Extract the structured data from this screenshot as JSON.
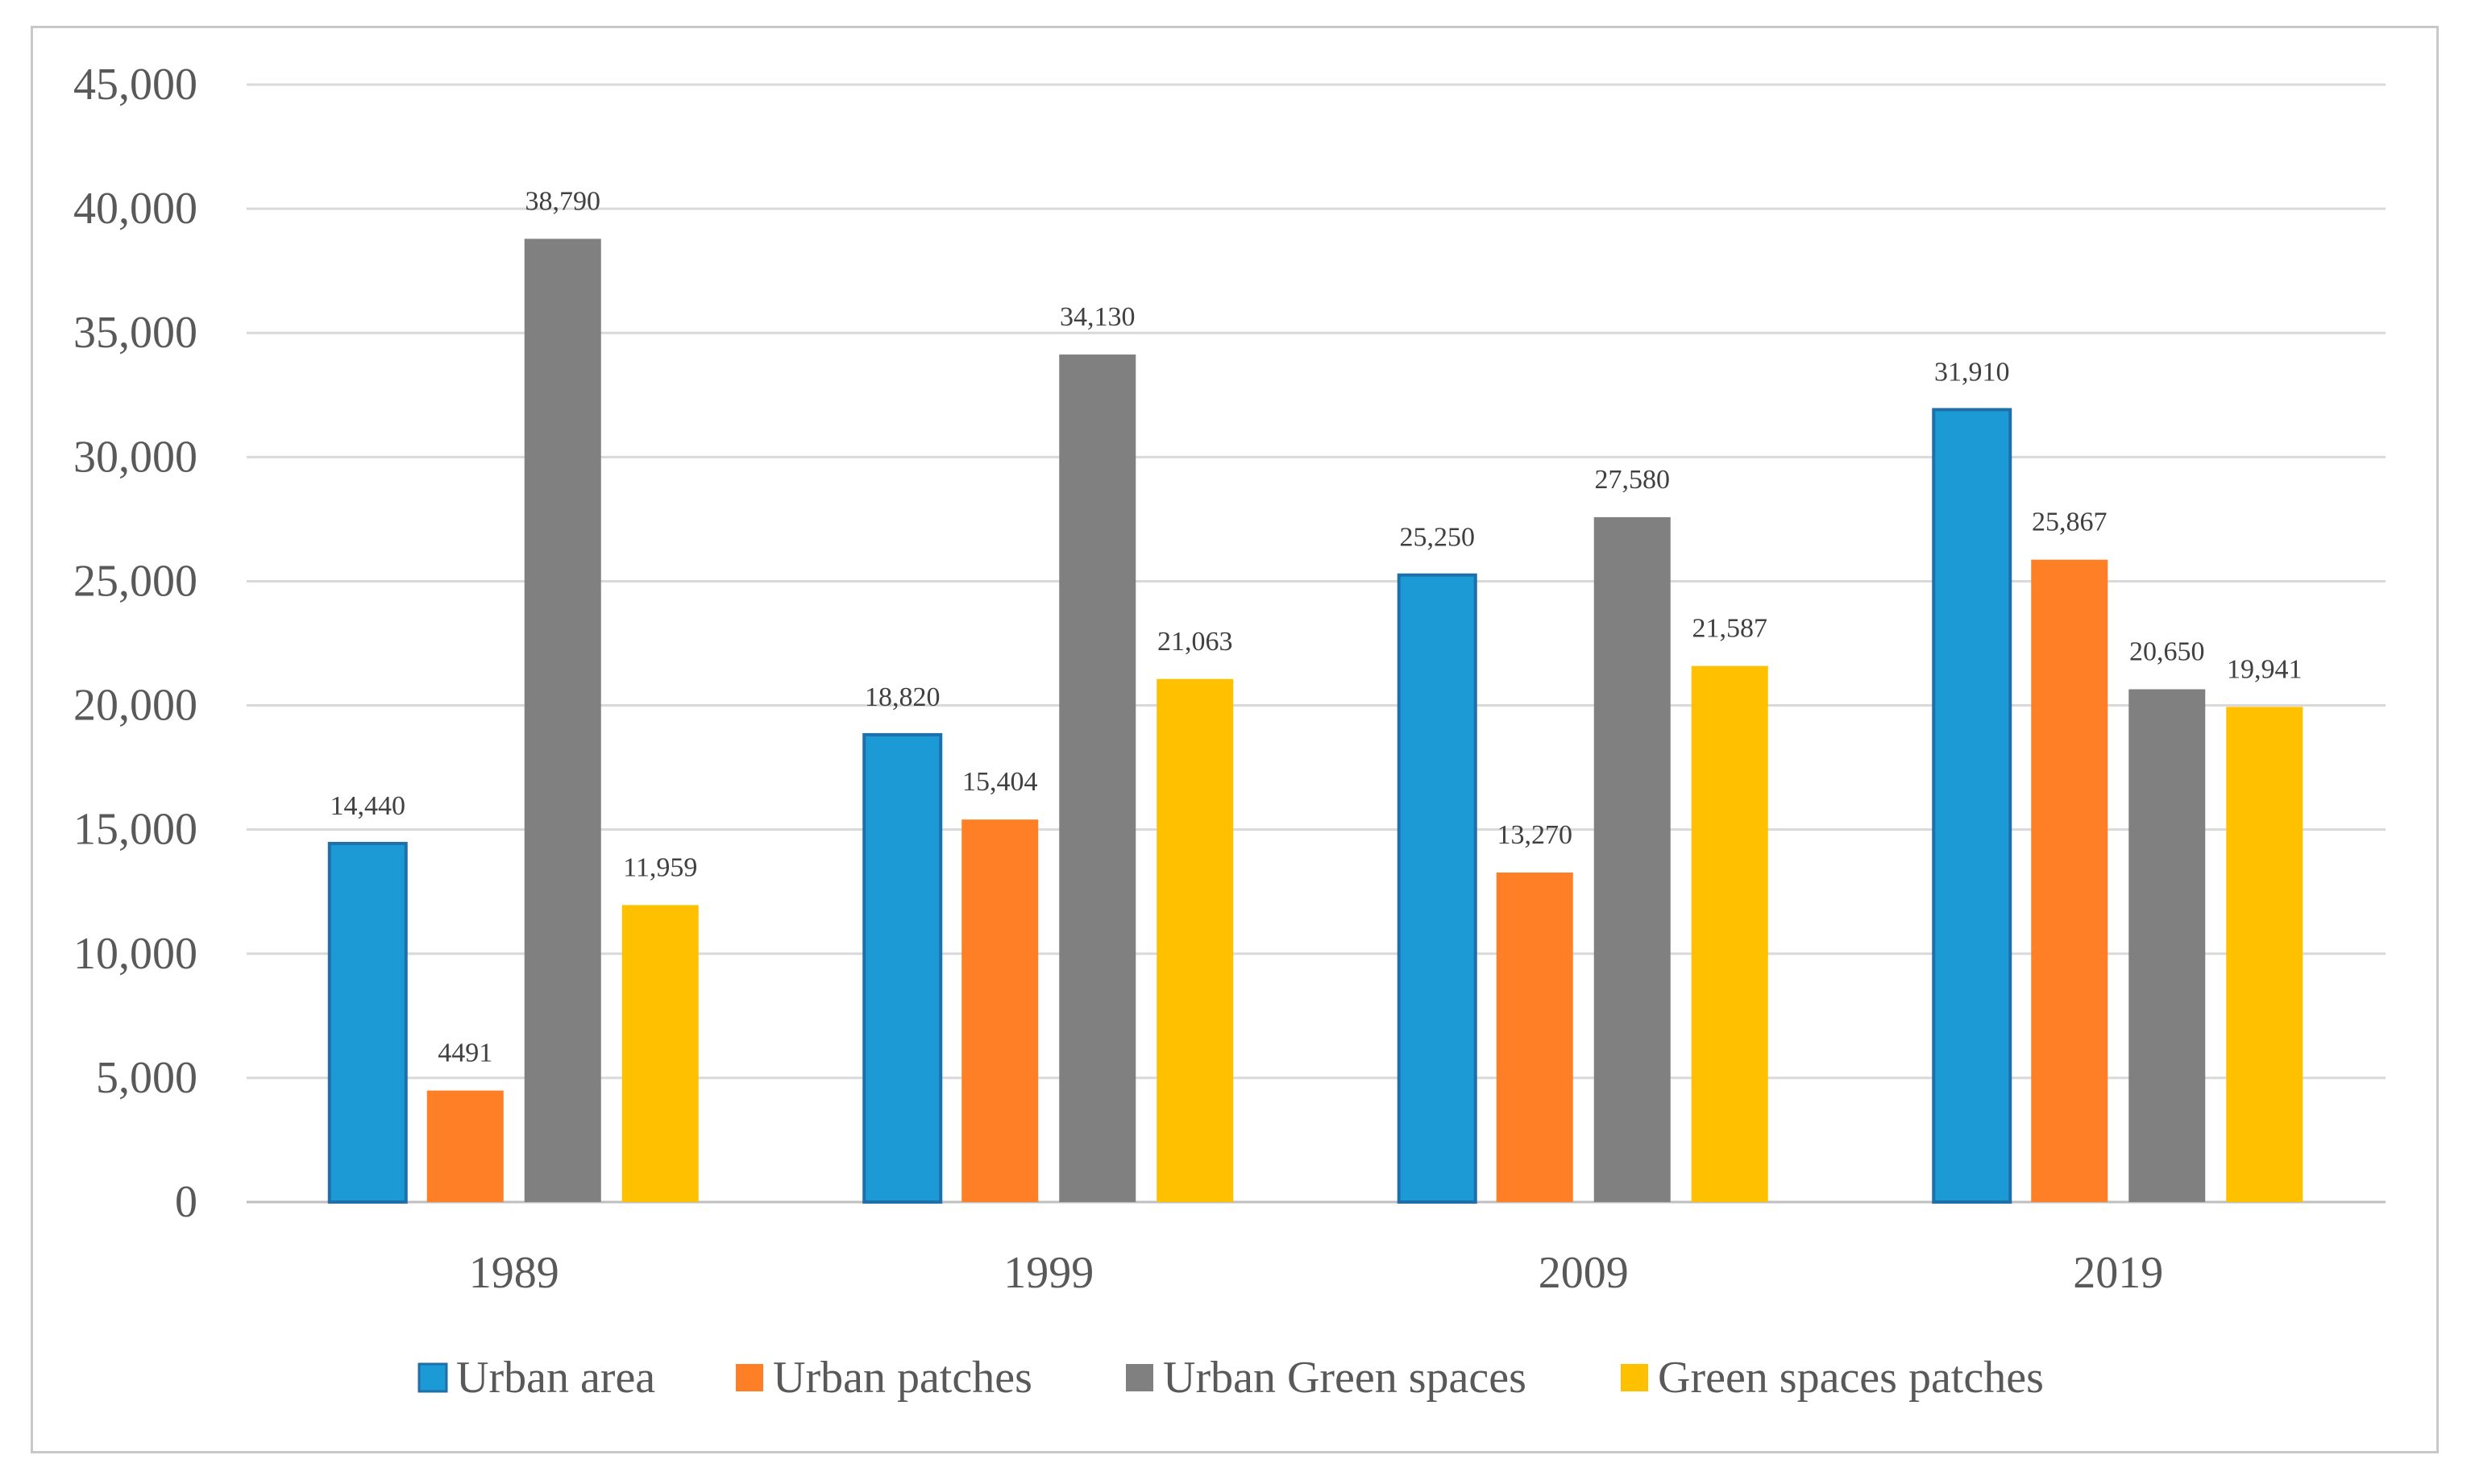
{
  "chart_data": {
    "type": "bar",
    "title": "",
    "xlabel": "",
    "ylabel": "",
    "ylim": [
      0,
      45000
    ],
    "ytick_step": 5000,
    "ytick_labels": [
      "0",
      "5,000",
      "10,000",
      "15,000",
      "20,000",
      "25,000",
      "30,000",
      "35,000",
      "40,000",
      "45,000"
    ],
    "grid": true,
    "legend_position": "bottom",
    "categories": [
      "1989",
      "1999",
      "2009",
      "2019"
    ],
    "series": [
      {
        "name": "Urban area",
        "color": "#1B9AD6",
        "values": [
          14440,
          18820,
          25250,
          31910
        ],
        "labels": [
          "14,440",
          "18,820",
          "25,250",
          "31,910"
        ]
      },
      {
        "name": "Urban patches",
        "color": "#FF7F27",
        "values": [
          4491,
          15404,
          13270,
          25867
        ],
        "labels": [
          "4491",
          "15,404",
          "13,270",
          "25,867"
        ]
      },
      {
        "name": "Urban Green spaces",
        "color": "#808080",
        "values": [
          38790,
          34130,
          27580,
          20650
        ],
        "labels": [
          "38,790",
          "34,130",
          "27,580",
          "20,650"
        ]
      },
      {
        "name": "Green spaces patches",
        "color": "#FFC000",
        "values": [
          11959,
          21063,
          21587,
          19941
        ],
        "labels": [
          "11,959",
          "21,063",
          "21,587",
          "19,941"
        ]
      }
    ]
  }
}
